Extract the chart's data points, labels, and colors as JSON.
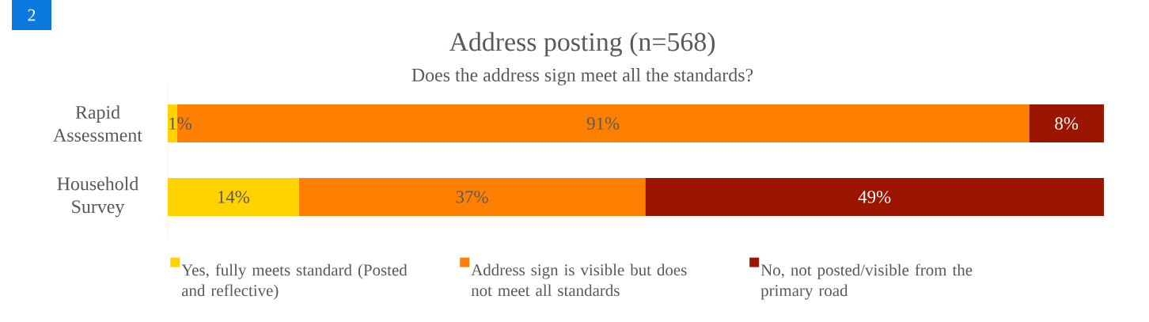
{
  "chart_data": {
    "type": "bar",
    "orientation": "horizontal",
    "stacked": true,
    "title": "Address posting (n=568)",
    "subtitle": "Does the address sign meet all the standards?",
    "annotations": [
      "2"
    ],
    "categories": [
      "Rapid Assessment",
      "Household Survey"
    ],
    "series": [
      {
        "name": "Yes, fully meets standard (Posted and reflective)",
        "color": "#ffd200",
        "values": [
          1,
          14
        ],
        "value_labels": [
          "1%",
          "14%"
        ]
      },
      {
        "name": "Address sign is visible but does not meet all standards",
        "color": "#ff8000",
        "values": [
          91,
          37
        ],
        "value_labels": [
          "91%",
          "37%"
        ]
      },
      {
        "name": "No, not posted/visible from the primary road",
        "color": "#9b1500",
        "values": [
          8,
          49
        ],
        "value_labels": [
          "8%",
          "49%"
        ]
      }
    ],
    "legend": "bottom",
    "tick_labels": "y"
  }
}
